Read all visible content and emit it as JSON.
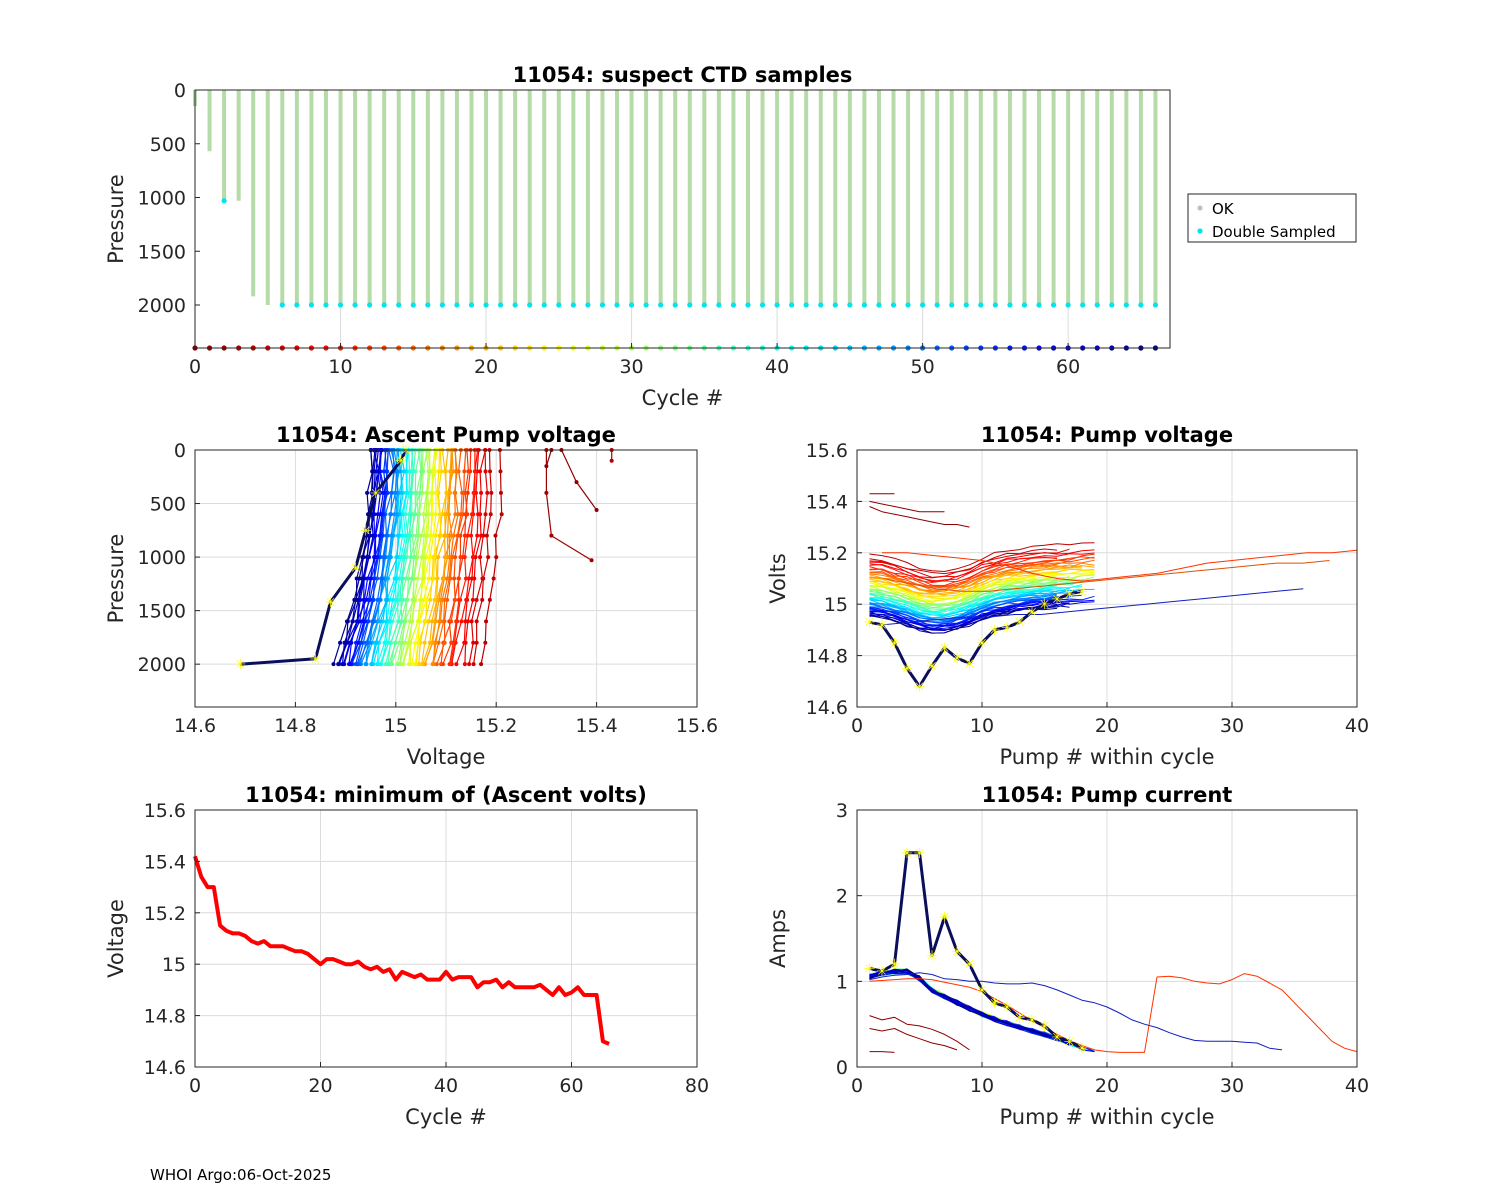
{
  "footer": {
    "text": "WHOI Argo:06-Oct-2025"
  },
  "chart_data": [
    {
      "id": "suspect",
      "type": "scatter",
      "title": "11054: suspect CTD samples",
      "xlabel": "Cycle #",
      "ylabel": "Pressure",
      "xlim": [
        0,
        67
      ],
      "ylim": [
        0,
        2400
      ],
      "y_reversed": true,
      "xticks": [
        0,
        10,
        20,
        30,
        40,
        50,
        60
      ],
      "yticks": [
        0,
        500,
        1000,
        1500,
        2000
      ],
      "grid": "x",
      "legend": {
        "position": "right",
        "entries": [
          {
            "label": "OK",
            "color": "#c0c0c0"
          },
          {
            "label": "Double Sampled",
            "color": "#00e5ee"
          }
        ]
      },
      "ok_color": "#b5dba8",
      "double_color": "#00e5ee",
      "max_pressure_by_cycle": [
        150,
        570,
        1030,
        1030,
        1920,
        2000,
        2000,
        2000,
        2000,
        2000,
        2000,
        2000,
        2000,
        2000,
        2000,
        2000,
        2000,
        2000,
        2000,
        2000,
        2000,
        2000,
        2000,
        2000,
        2000,
        2000,
        2000,
        2000,
        2000,
        2000,
        2000,
        2000,
        2000,
        2000,
        2000,
        2000,
        2000,
        2000,
        2000,
        2000,
        2000,
        2000,
        2000,
        2000,
        2000,
        2000,
        2000,
        2000,
        2000,
        2000,
        2000,
        2000,
        2000,
        2000,
        2000,
        2000,
        2000,
        2000,
        2000,
        2000,
        2000,
        2000,
        2000,
        2000,
        2000,
        2000,
        2000
      ],
      "double_sampled": [
        {
          "cycle": 2,
          "pressure": 1030
        },
        {
          "cycle": "6-66",
          "pressure": 2000
        }
      ],
      "cycle_marker_pressure": 2400
    },
    {
      "id": "ascent",
      "type": "line",
      "title": "11054: Ascent Pump voltage",
      "xlabel": "Voltage",
      "ylabel": "Pressure",
      "xlim": [
        14.6,
        15.6
      ],
      "ylim": [
        0,
        2400
      ],
      "y_reversed": true,
      "xticks": [
        14.6,
        14.8,
        15,
        15.2,
        15.4,
        15.6
      ],
      "yticks": [
        0,
        500,
        1000,
        1500,
        2000
      ],
      "grid": true,
      "colormap": "jet (cycle 0 dark red → cycle 66 dark blue)",
      "profile_pressures": [
        2000,
        1800,
        1600,
        1400,
        1200,
        1000,
        800,
        600,
        400,
        200,
        0
      ],
      "highlight_latest": [
        {
          "p": 2000,
          "v": 14.69
        },
        {
          "p": 1950,
          "v": 14.84
        },
        {
          "p": 1420,
          "v": 14.87
        },
        {
          "p": 1100,
          "v": 14.92
        },
        {
          "p": 750,
          "v": 14.94
        },
        {
          "p": 400,
          "v": 14.96
        },
        {
          "p": 100,
          "v": 15.01
        },
        {
          "p": 0,
          "v": 15.02
        }
      ],
      "early_cycles": [
        {
          "cycle": 0,
          "points": [
            {
              "p": 0,
              "v": 15.31
            },
            {
              "p": 150,
              "v": 15.3
            }
          ]
        },
        {
          "cycle": 1,
          "points": [
            {
              "p": 0,
              "v": 15.33
            },
            {
              "p": 300,
              "v": 15.36
            },
            {
              "p": 560,
              "v": 15.4
            }
          ]
        },
        {
          "cycle": 2,
          "points": [
            {
              "p": 0,
              "v": 15.3
            },
            {
              "p": 400,
              "v": 15.3
            },
            {
              "p": 800,
              "v": 15.31
            },
            {
              "p": 1030,
              "v": 15.39
            }
          ]
        },
        {
          "cycle": 3,
          "points": [
            {
              "p": 100,
              "v": 15.43
            },
            {
              "p": 0,
              "v": 15.43
            }
          ]
        }
      ]
    },
    {
      "id": "pumpvolt",
      "type": "line",
      "title": "11054: Pump voltage",
      "xlabel": "Pump # within cycle",
      "ylabel": "Volts",
      "xlim": [
        0,
        40
      ],
      "ylim": [
        14.6,
        15.6
      ],
      "xticks": [
        0,
        10,
        20,
        30,
        40
      ],
      "yticks": [
        14.6,
        14.8,
        15,
        15.2,
        15.4,
        15.6
      ],
      "grid": true,
      "highlight_latest": [
        14.93,
        14.92,
        14.85,
        14.75,
        14.68,
        14.76,
        14.83,
        14.79,
        14.77,
        14.85,
        14.9,
        14.91,
        14.93,
        14.97,
        15.0,
        15.02,
        15.04,
        15.05
      ],
      "long_cycles": [
        {
          "color": "#ff3300",
          "values": [
            15.2,
            15.2,
            15.19,
            15.18,
            15.17,
            15.15,
            15.12,
            15.1,
            15.09,
            15.1,
            15.11,
            15.12,
            15.14,
            15.16,
            15.17,
            15.18,
            15.19,
            15.2,
            15.2,
            15.21
          ]
        },
        {
          "color": "#e05000",
          "values": [
            15.1,
            15.08,
            15.06,
            15.05,
            15.05,
            15.06,
            15.07,
            15.08,
            15.09,
            15.1,
            15.11,
            15.12,
            15.13,
            15.14,
            15.15,
            15.16,
            15.16,
            15.17
          ]
        },
        {
          "color": "#1020c0",
          "values": [
            14.92,
            14.93,
            14.94,
            14.95,
            14.95,
            14.96,
            14.96,
            14.97,
            14.98,
            14.99,
            15.0,
            15.01,
            15.02,
            15.03,
            15.04,
            15.05,
            15.06
          ]
        }
      ],
      "early_cycles": [
        {
          "values": [
            15.43,
            15.43,
            15.43
          ]
        },
        {
          "values": [
            15.38,
            15.36,
            15.35,
            15.34,
            15.33,
            15.32,
            15.31,
            15.31,
            15.3
          ]
        },
        {
          "values": [
            15.4,
            15.39,
            15.38,
            15.37,
            15.36,
            15.36,
            15.36
          ]
        }
      ]
    },
    {
      "id": "minvolt",
      "type": "line",
      "title": "11054: minimum of (Ascent volts)",
      "xlabel": "Cycle #",
      "ylabel": "Voltage",
      "xlim": [
        0,
        80
      ],
      "ylim": [
        14.6,
        15.6
      ],
      "xticks": [
        0,
        20,
        40,
        60,
        80
      ],
      "yticks": [
        14.6,
        14.8,
        15,
        15.2,
        15.4,
        15.6
      ],
      "grid": true,
      "color": "#ff0000",
      "series": [
        {
          "name": "min ascent volts",
          "x": [
            0,
            1,
            2,
            3,
            4,
            5,
            6,
            7,
            8,
            9,
            10,
            11,
            12,
            13,
            14,
            15,
            16,
            17,
            18,
            19,
            20,
            21,
            22,
            23,
            24,
            25,
            26,
            27,
            28,
            29,
            30,
            31,
            32,
            33,
            34,
            35,
            36,
            37,
            38,
            39,
            40,
            41,
            42,
            43,
            44,
            45,
            46,
            47,
            48,
            49,
            50,
            51,
            52,
            53,
            54,
            55,
            56,
            57,
            58,
            59,
            60,
            61,
            62,
            63,
            64,
            65,
            66
          ],
          "values": [
            15.42,
            15.34,
            15.3,
            15.3,
            15.15,
            15.13,
            15.12,
            15.12,
            15.11,
            15.09,
            15.08,
            15.09,
            15.07,
            15.07,
            15.07,
            15.06,
            15.05,
            15.05,
            15.04,
            15.02,
            15.0,
            15.02,
            15.02,
            15.01,
            15.0,
            15.0,
            15.01,
            14.99,
            14.98,
            14.99,
            14.97,
            14.98,
            14.94,
            14.97,
            14.96,
            14.95,
            14.96,
            14.94,
            14.94,
            14.94,
            14.97,
            14.94,
            14.95,
            14.95,
            14.95,
            14.91,
            14.93,
            14.93,
            14.94,
            14.91,
            14.93,
            14.91,
            14.91,
            14.91,
            14.91,
            14.92,
            14.9,
            14.88,
            14.91,
            14.88,
            14.89,
            14.91,
            14.88,
            14.88,
            14.88,
            14.7,
            14.69
          ]
        }
      ]
    },
    {
      "id": "pumpcurr",
      "type": "line",
      "title": "11054: Pump current",
      "xlabel": "Pump # within cycle",
      "ylabel": "Amps",
      "xlim": [
        0,
        40
      ],
      "ylim": [
        0,
        3
      ],
      "xticks": [
        0,
        10,
        20,
        30,
        40
      ],
      "yticks": [
        0,
        1,
        2,
        3
      ],
      "grid": true,
      "highlight_latest": [
        1.15,
        1.12,
        1.2,
        2.5,
        2.5,
        1.3,
        1.75,
        1.35,
        1.2,
        0.9,
        0.75,
        0.7,
        0.58,
        0.55,
        0.48,
        0.35,
        0.3,
        0.22
      ],
      "long_cycles": [
        {
          "color": "#ff3300",
          "values": [
            1.0,
            1.01,
            1.02,
            1.03,
            1.03,
            1.02,
            0.99,
            0.96,
            0.93,
            0.88,
            0.8,
            0.72,
            0.63,
            0.54,
            0.46,
            0.38,
            0.31,
            0.25,
            0.2,
            0.18,
            0.17,
            0.17,
            0.17,
            1.05,
            1.06,
            1.04,
            1.0,
            0.98,
            0.97,
            1.02,
            1.09,
            1.06,
            0.98,
            0.9,
            0.75,
            0.6,
            0.45,
            0.3,
            0.22,
            0.18
          ]
        },
        {
          "color": "#1020c0",
          "values": [
            1.02,
            1.05,
            1.07,
            1.08,
            1.1,
            1.08,
            1.03,
            1.02,
            1.0,
            1.0,
            0.98,
            0.97,
            0.97,
            0.98,
            0.95,
            0.9,
            0.84,
            0.78,
            0.75,
            0.7,
            0.63,
            0.55,
            0.5,
            0.46,
            0.4,
            0.35,
            0.31,
            0.3,
            0.3,
            0.3,
            0.29,
            0.28,
            0.22,
            0.2
          ]
        }
      ],
      "early_cycles": [
        {
          "values": [
            0.18,
            0.18,
            0.17
          ]
        },
        {
          "values": [
            0.6,
            0.55,
            0.58,
            0.5,
            0.48,
            0.44,
            0.38,
            0.3,
            0.2
          ]
        },
        {
          "values": [
            0.45,
            0.42,
            0.45,
            0.38,
            0.33,
            0.28,
            0.25,
            0.2
          ]
        }
      ]
    }
  ]
}
